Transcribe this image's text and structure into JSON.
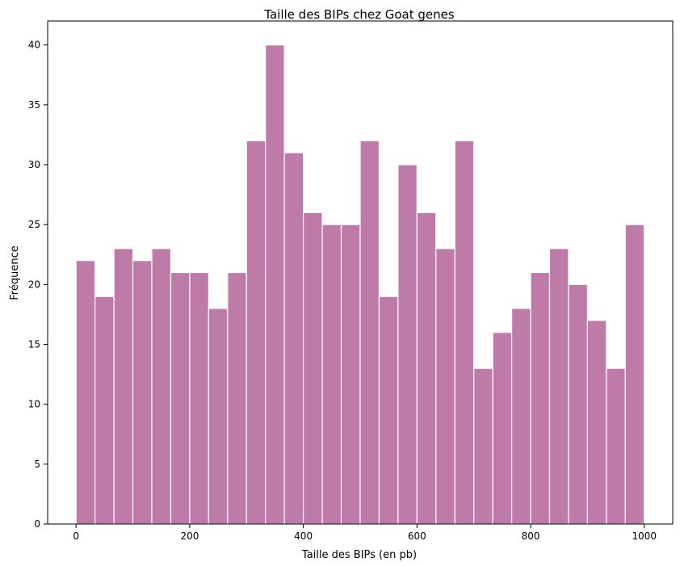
{
  "chart_data": {
    "type": "bar",
    "title": "Taille des BIPs chez Goat genes",
    "xlabel": "Taille des BIPs (en pb)",
    "ylabel": "Fréquence",
    "bin_start": 0,
    "bin_width": 33.33,
    "values": [
      22,
      19,
      23,
      22,
      23,
      21,
      21,
      18,
      21,
      32,
      40,
      31,
      26,
      25,
      25,
      32,
      19,
      30,
      26,
      23,
      32,
      13,
      16,
      18,
      21,
      23,
      20,
      17,
      13,
      25
    ],
    "xlim": [
      -50,
      1050
    ],
    "ylim": [
      0,
      42
    ],
    "xticks": [
      0,
      200,
      400,
      600,
      800,
      1000
    ],
    "yticks": [
      0,
      5,
      10,
      15,
      20,
      25,
      30,
      35,
      40
    ],
    "bar_color": "#bf7ba7",
    "edge_color": "#ffffff",
    "grid": false
  }
}
